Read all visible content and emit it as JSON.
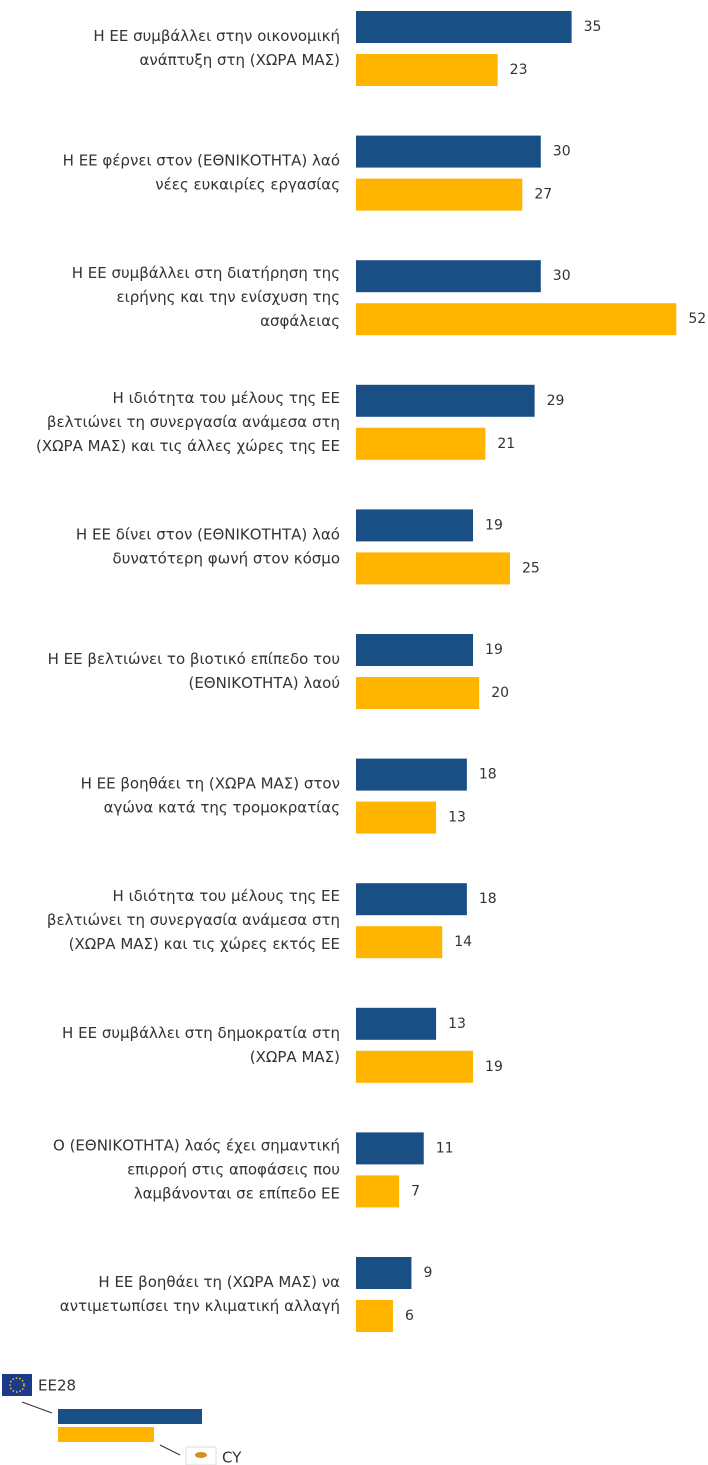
{
  "chart_data": {
    "type": "bar",
    "orientation": "horizontal",
    "categories": [
      [
        "Η ΕΕ συμβάλλει στην οικονομική",
        "ανάπτυξη στη (ΧΩΡΑ ΜΑΣ)"
      ],
      [
        "Η ΕΕ φέρνει στον (ΕΘΝΙΚΟΤΗΤΑ) λαό",
        "νέες ευκαιρίες εργασίας"
      ],
      [
        "Η ΕΕ συμβάλλει στη διατήρηση της",
        "ειρήνης και την ενίσχυση της",
        "ασφάλειας"
      ],
      [
        "Η ιδιότητα του μέλους της ΕΕ",
        "βελτιώνει τη συνεργασία ανάμεσα στη",
        "(ΧΩΡΑ ΜΑΣ) και τις άλλες χώρες της ΕΕ"
      ],
      [
        "Η ΕΕ δίνει στον (ΕΘΝΙΚΟΤΗΤΑ) λαό",
        "δυνατότερη φωνή στον κόσμο"
      ],
      [
        "Η ΕΕ βελτιώνει το βιοτικό επίπεδο του",
        "(ΕΘΝΙΚΟΤΗΤΑ) λαού"
      ],
      [
        "Η ΕΕ βοηθάει τη (ΧΩΡΑ ΜΑΣ) στον",
        "αγώνα κατά της τρομοκρατίας"
      ],
      [
        "Η ιδιότητα του μέλους της ΕΕ",
        "βελτιώνει τη συνεργασία ανάμεσα στη",
        "(ΧΩΡΑ ΜΑΣ) και τις χώρες εκτός ΕΕ"
      ],
      [
        "Η ΕΕ συμβάλλει στη δημοκρατία στη",
        "(ΧΩΡΑ ΜΑΣ)"
      ],
      [
        "Ο (ΕΘΝΙΚΟΤΗΤΑ) λαός έχει σημαντική",
        "επιρροή στις αποφάσεις που",
        "λαμβάνονται σε επίπεδο ΕΕ"
      ],
      [
        "Η ΕΕ βοηθάει τη (ΧΩΡΑ ΜΑΣ) να",
        "αντιμετωπίσει την κλιματική αλλαγή"
      ]
    ],
    "series": [
      {
        "name": "EE28",
        "color": "#1a4f86",
        "values": [
          35,
          30,
          30,
          29,
          19,
          19,
          18,
          18,
          13,
          11,
          9
        ]
      },
      {
        "name": "CY",
        "color": "#ffb400",
        "values": [
          23,
          27,
          52,
          21,
          25,
          20,
          13,
          14,
          19,
          7,
          6
        ]
      }
    ]
  }
}
